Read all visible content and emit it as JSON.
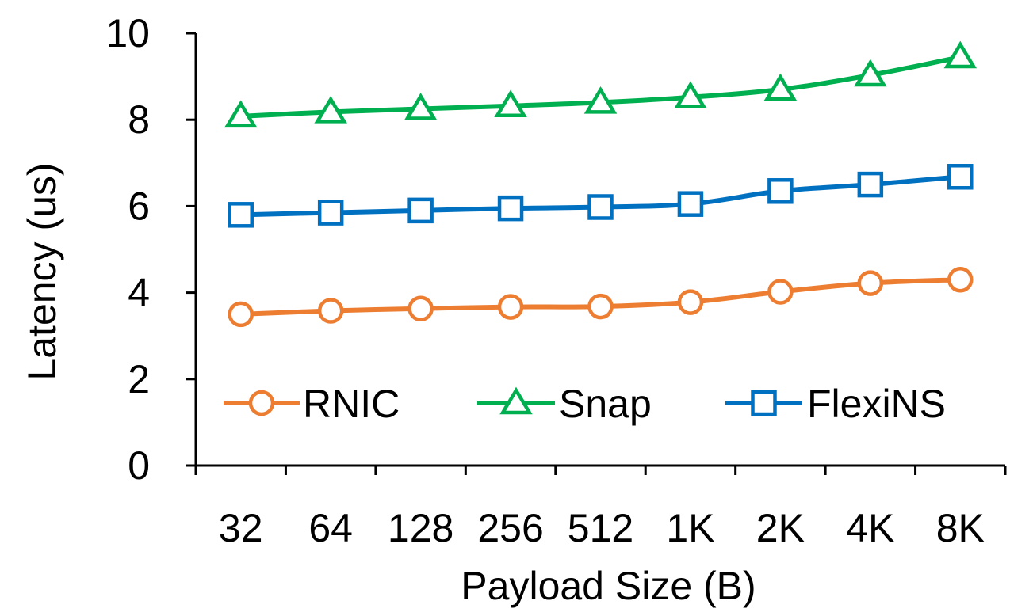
{
  "chart_data": {
    "type": "line",
    "title": "",
    "xlabel": "Payload Size (B)",
    "ylabel": "Latency (us)",
    "categories": [
      "32",
      "64",
      "128",
      "256",
      "512",
      "1K",
      "2K",
      "4K",
      "8K"
    ],
    "ylim": [
      0,
      10
    ],
    "yticks": [
      "0",
      "2",
      "4",
      "6",
      "8",
      "10"
    ],
    "grid": false,
    "legend_position": "bottom",
    "series": [
      {
        "name": "RNIC",
        "color": "#ED7D31",
        "marker": "circle",
        "values": [
          3.5,
          3.58,
          3.63,
          3.67,
          3.68,
          3.78,
          4.02,
          4.22,
          4.3
        ]
      },
      {
        "name": "Snap",
        "color": "#00B050",
        "marker": "triangle",
        "values": [
          8.08,
          8.18,
          8.25,
          8.32,
          8.4,
          8.52,
          8.7,
          9.03,
          9.45
        ]
      },
      {
        "name": "FlexiNS",
        "color": "#0070C0",
        "marker": "square",
        "values": [
          5.8,
          5.85,
          5.9,
          5.95,
          5.98,
          6.05,
          6.35,
          6.5,
          6.68
        ]
      }
    ]
  }
}
